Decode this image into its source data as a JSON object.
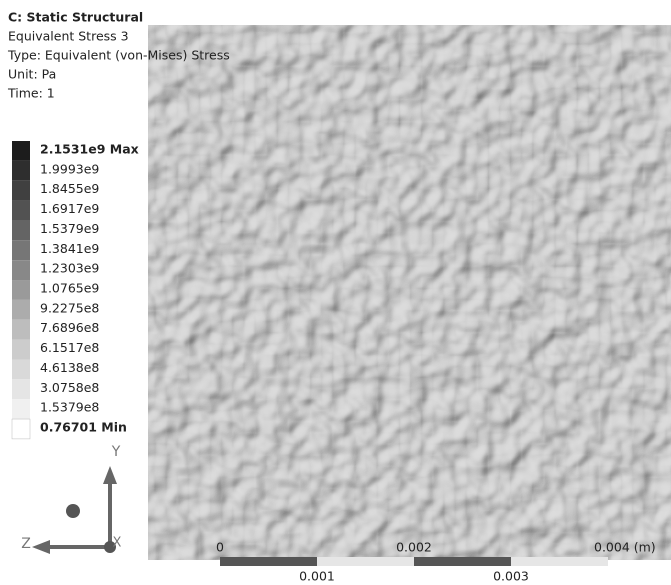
{
  "header": {
    "title": "C: Static Structural",
    "lines": [
      "Equivalent Stress 3",
      "Type: Equivalent (von-Mises) Stress",
      "Unit: Pa",
      "Time: 1"
    ]
  },
  "legend": {
    "labels": [
      "2.1531e9 Max",
      "1.9993e9",
      "1.8455e9",
      "1.6917e9",
      "1.5379e9",
      "1.3841e9",
      "1.2303e9",
      "1.0765e9",
      "9.2275e8",
      "7.6896e8",
      "6.1517e8",
      "4.6138e8",
      "3.0758e8",
      "1.5379e8",
      "0.76701 Min"
    ],
    "colors": [
      "#1c1c1c",
      "#2e2e2e",
      "#404040",
      "#525252",
      "#646464",
      "#767676",
      "#888888",
      "#9a9a9a",
      "#acacac",
      "#bdbdbd",
      "#cccccc",
      "#d9d9d9",
      "#e5e5e5",
      "#f0f0f0",
      "#ffffff"
    ]
  },
  "scale_bar": {
    "top_labels": [
      "0",
      "0.002",
      "0.004 (m)"
    ],
    "bottom_labels": [
      "0.001",
      "0.003"
    ]
  },
  "triad": {
    "y": "Y",
    "z": "Z",
    "x": "X"
  }
}
